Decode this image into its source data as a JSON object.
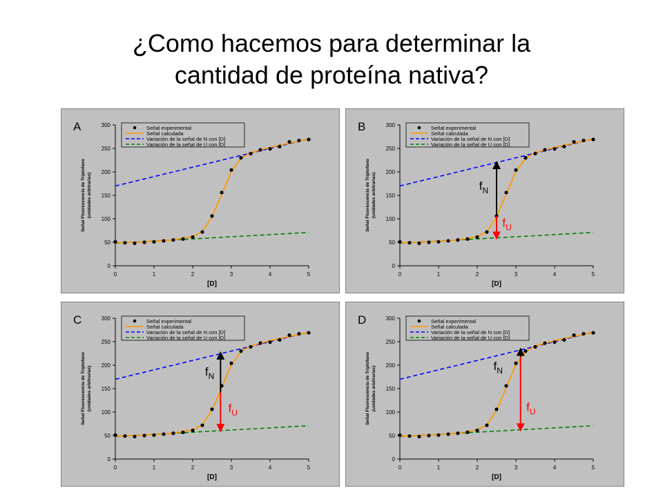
{
  "slide": {
    "title_line1": "¿Como hacemos para determinar la",
    "title_line2": "cantidad de proteína nativa?"
  },
  "colors": {
    "panel_bg": "#c0c0c0",
    "panel_border": "#808080",
    "calc_curve": "#ff9900",
    "n_baseline": "#0000ff",
    "u_baseline": "#008000",
    "arrow_n": "#000000",
    "arrow_u": "#ff0000",
    "points": "#000000"
  },
  "chart_data": [
    {
      "type": "scatter",
      "panel": "A",
      "xlabel": "[D]",
      "ylabel": "Señal Fluorescencia de Triptofano",
      "ylabel2": "(unidades arbitrarias)",
      "xlim": [
        0,
        5
      ],
      "ylim": [
        0,
        300
      ],
      "xticks": [
        "0",
        "1",
        "2",
        "3",
        "4",
        "5"
      ],
      "yticks": [
        "0",
        "50",
        "100",
        "150",
        "200",
        "250",
        "300"
      ],
      "legend_position": "top",
      "legend": [
        "Señal experimental",
        "Señal calculada",
        "Variación de la señal de N con [D]",
        "Variación de la señal de U con [D]"
      ],
      "series": [
        {
          "name": "Señal experimental",
          "x": [
            0,
            0.25,
            0.5,
            0.75,
            1,
            1.25,
            1.5,
            1.75,
            2,
            2.25,
            2.5,
            2.75,
            3,
            3.25,
            3.5,
            3.75,
            4,
            4.25,
            4.5,
            4.75,
            5
          ],
          "y": [
            51,
            49,
            48,
            50,
            51,
            53,
            55,
            57,
            61,
            72,
            106,
            156,
            204,
            230,
            239,
            247,
            249,
            254,
            264,
            267,
            269
          ]
        },
        {
          "name": "Señal calculada",
          "model": "two-state sigmoid",
          "x": [
            0,
            0.5,
            1,
            1.5,
            2,
            2.25,
            2.5,
            2.75,
            3,
            3.25,
            3.5,
            4,
            4.5,
            5
          ],
          "y": [
            49,
            50,
            52,
            55,
            62,
            73,
            104,
            152,
            201,
            229,
            241,
            252,
            261,
            270
          ]
        },
        {
          "name": "Variación de la señal de N con [D]",
          "x": [
            0,
            5
          ],
          "y": [
            170,
            270
          ]
        },
        {
          "name": "Variación de la señal de U con [D]",
          "x": [
            0,
            5
          ],
          "y": [
            48,
            71
          ]
        }
      ],
      "arrows": []
    },
    {
      "type": "scatter",
      "panel": "B",
      "xlabel": "[D]",
      "ylabel": "Señal Fluorescencia de Triptofano",
      "ylabel2": "(unidades arbitrarias)",
      "xlim": [
        0,
        5
      ],
      "ylim": [
        0,
        300
      ],
      "xticks": [
        "0",
        "1",
        "2",
        "3",
        "4",
        "5"
      ],
      "yticks": [
        "0",
        "50",
        "100",
        "150",
        "200",
        "250",
        "300"
      ],
      "legend_position": "top",
      "legend": [
        "Señal experimental",
        "Señal calculada",
        "Variación de la señal de N con [D]",
        "Variación de la señal de U con [D]"
      ],
      "series": [
        {
          "name": "Señal experimental",
          "x": [
            0,
            0.25,
            0.5,
            0.75,
            1,
            1.25,
            1.5,
            1.75,
            2,
            2.25,
            2.5,
            2.75,
            3,
            3.25,
            3.5,
            3.75,
            4,
            4.25,
            4.5,
            4.75,
            5
          ],
          "y": [
            51,
            49,
            48,
            50,
            51,
            53,
            55,
            57,
            61,
            72,
            106,
            156,
            204,
            230,
            239,
            247,
            249,
            254,
            264,
            267,
            269
          ]
        },
        {
          "name": "Señal calculada",
          "model": "two-state sigmoid",
          "x": [
            0,
            0.5,
            1,
            1.5,
            2,
            2.25,
            2.5,
            2.75,
            3,
            3.25,
            3.5,
            4,
            4.5,
            5
          ],
          "y": [
            49,
            50,
            52,
            55,
            62,
            73,
            104,
            152,
            201,
            229,
            241,
            252,
            261,
            270
          ]
        },
        {
          "name": "Variación de la señal de N con [D]",
          "x": [
            0,
            5
          ],
          "y": [
            170,
            270
          ]
        },
        {
          "name": "Variación de la señal de U con [D]",
          "x": [
            0,
            5
          ],
          "y": [
            48,
            71
          ]
        }
      ],
      "arrows": [
        {
          "label": "f",
          "sub": "N",
          "x": 2.5,
          "y_from": 106,
          "y_to": 220,
          "color": "#000000",
          "label_x": 2.05,
          "label_y": 162
        },
        {
          "label": "f",
          "sub": "U",
          "x": 2.5,
          "y_from": 106,
          "y_to": 59,
          "color": "#ff0000",
          "label_x": 2.65,
          "label_y": 83
        }
      ]
    },
    {
      "type": "scatter",
      "panel": "C",
      "xlabel": "[D]",
      "ylabel": "Señal Fluorescencia de Triptofano",
      "ylabel2": "(unidades arbitrarias)",
      "xlim": [
        0,
        5
      ],
      "ylim": [
        0,
        300
      ],
      "xticks": [
        "0",
        "1",
        "2",
        "3",
        "4",
        "5"
      ],
      "yticks": [
        "0",
        "50",
        "100",
        "150",
        "200",
        "250",
        "300"
      ],
      "legend_position": "top",
      "legend": [
        "Señal experimental",
        "Señal calculada",
        "Variación de la señal de N con [D]",
        "Variación de la señal de U con [D]"
      ],
      "series": [
        {
          "name": "Señal experimental",
          "x": [
            0,
            0.25,
            0.5,
            0.75,
            1,
            1.25,
            1.5,
            1.75,
            2,
            2.25,
            2.5,
            2.75,
            3,
            3.25,
            3.5,
            3.75,
            4,
            4.25,
            4.5,
            4.75,
            5
          ],
          "y": [
            51,
            49,
            48,
            50,
            51,
            53,
            55,
            57,
            61,
            72,
            106,
            156,
            204,
            230,
            239,
            247,
            249,
            254,
            264,
            267,
            269
          ]
        },
        {
          "name": "Señal calculada",
          "model": "two-state sigmoid",
          "x": [
            0,
            0.5,
            1,
            1.5,
            2,
            2.25,
            2.5,
            2.75,
            3,
            3.25,
            3.5,
            4,
            4.5,
            5
          ],
          "y": [
            49,
            50,
            52,
            55,
            62,
            73,
            104,
            152,
            201,
            229,
            241,
            252,
            261,
            270
          ]
        },
        {
          "name": "Variación de la señal de N con [D]",
          "x": [
            0,
            5
          ],
          "y": [
            170,
            270
          ]
        },
        {
          "name": "Variación de la señal de U con [D]",
          "x": [
            0,
            5
          ],
          "y": [
            48,
            71
          ]
        }
      ],
      "arrows": [
        {
          "label": "f",
          "sub": "N",
          "x": 2.72,
          "y_from": 142,
          "y_to": 226,
          "color": "#000000",
          "label_x": 2.32,
          "label_y": 178
        },
        {
          "label": "f",
          "sub": "U",
          "x": 2.72,
          "y_from": 142,
          "y_to": 61,
          "color": "#ff0000",
          "label_x": 2.92,
          "label_y": 100
        }
      ]
    },
    {
      "type": "scatter",
      "panel": "D",
      "xlabel": "[D]",
      "ylabel": "Señal Fluorescencia de Triptofano",
      "ylabel2": "(unidades arbitrarias)",
      "xlim": [
        0,
        5
      ],
      "ylim": [
        0,
        300
      ],
      "xticks": [
        "0",
        "1",
        "2",
        "3",
        "4",
        "5"
      ],
      "yticks": [
        "0",
        "50",
        "100",
        "150",
        "200",
        "250",
        "300"
      ],
      "legend_position": "top",
      "legend": [
        "Señal experimental",
        "Señal calculada",
        "Variación de la señal de N con [D]",
        "Variación de la señal de U con [D]"
      ],
      "series": [
        {
          "name": "Señal experimental",
          "x": [
            0,
            0.25,
            0.5,
            0.75,
            1,
            1.25,
            1.5,
            1.75,
            2,
            2.25,
            2.5,
            2.75,
            3,
            3.25,
            3.5,
            3.75,
            4,
            4.25,
            4.5,
            4.75,
            5
          ],
          "y": [
            51,
            49,
            48,
            50,
            51,
            53,
            55,
            57,
            61,
            72,
            106,
            156,
            204,
            230,
            239,
            247,
            249,
            254,
            264,
            267,
            269
          ]
        },
        {
          "name": "Señal calculada",
          "model": "two-state sigmoid",
          "x": [
            0,
            0.5,
            1,
            1.5,
            2,
            2.25,
            2.5,
            2.75,
            3,
            3.25,
            3.5,
            4,
            4.5,
            5
          ],
          "y": [
            49,
            50,
            52,
            55,
            62,
            73,
            104,
            152,
            201,
            229,
            241,
            252,
            261,
            270
          ]
        },
        {
          "name": "Variación de la señal de N con [D]",
          "x": [
            0,
            5
          ],
          "y": [
            170,
            270
          ]
        },
        {
          "name": "Variación de la señal de U con [D]",
          "x": [
            0,
            5
          ],
          "y": [
            48,
            71
          ]
        }
      ],
      "arrows": [
        {
          "label": "f",
          "sub": "N",
          "x": 3.12,
          "y_from": 218,
          "y_to": 234,
          "color": "#000000",
          "label_x": 2.42,
          "label_y": 190
        },
        {
          "label": "f",
          "sub": "U",
          "x": 3.12,
          "y_from": 218,
          "y_to": 62,
          "color": "#ff0000",
          "label_x": 3.27,
          "label_y": 102
        }
      ]
    }
  ]
}
